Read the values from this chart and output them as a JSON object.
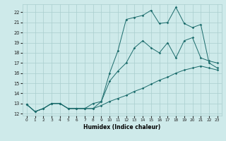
{
  "xlabel": "Humidex (Indice chaleur)",
  "xlim": [
    -0.5,
    23.5
  ],
  "ylim": [
    11.8,
    22.8
  ],
  "xticks": [
    0,
    1,
    2,
    3,
    4,
    5,
    6,
    7,
    8,
    9,
    10,
    11,
    12,
    13,
    14,
    15,
    16,
    17,
    18,
    19,
    20,
    21,
    22,
    23
  ],
  "yticks": [
    12,
    13,
    14,
    15,
    16,
    17,
    18,
    19,
    20,
    21,
    22
  ],
  "background_color": "#ceeaea",
  "grid_color": "#aacece",
  "line_color": "#1a6b6b",
  "curve1_x": [
    0,
    1,
    2,
    3,
    4,
    5,
    6,
    7,
    8,
    9,
    10,
    11,
    12,
    13,
    14,
    15,
    16,
    17,
    18,
    19,
    20,
    21,
    22,
    23
  ],
  "curve1_y": [
    12.9,
    12.2,
    12.5,
    13.0,
    13.0,
    12.5,
    12.5,
    12.5,
    12.5,
    12.8,
    13.2,
    13.5,
    13.8,
    14.2,
    14.5,
    14.9,
    15.3,
    15.6,
    16.0,
    16.3,
    16.5,
    16.7,
    16.5,
    16.3
  ],
  "curve2_x": [
    0,
    1,
    2,
    3,
    4,
    5,
    6,
    7,
    8,
    9,
    10,
    11,
    12,
    13,
    14,
    15,
    16,
    17,
    18,
    19,
    20,
    21,
    22,
    23
  ],
  "curve2_y": [
    12.9,
    12.2,
    12.5,
    13.0,
    13.0,
    12.5,
    12.5,
    12.5,
    12.5,
    13.2,
    15.2,
    16.2,
    17.0,
    18.5,
    19.2,
    18.5,
    18.0,
    19.0,
    17.5,
    19.2,
    19.5,
    17.5,
    17.2,
    17.0
  ],
  "curve3_x": [
    0,
    1,
    2,
    3,
    4,
    5,
    6,
    7,
    8,
    9,
    10,
    11,
    12,
    13,
    14,
    15,
    16,
    17,
    18,
    19,
    20,
    21,
    22,
    23
  ],
  "curve3_y": [
    12.9,
    12.2,
    12.5,
    13.0,
    13.0,
    12.5,
    12.5,
    12.5,
    13.0,
    13.2,
    16.0,
    18.2,
    21.3,
    21.5,
    21.7,
    22.2,
    20.9,
    21.0,
    22.5,
    20.9,
    20.5,
    20.8,
    17.0,
    16.5
  ]
}
